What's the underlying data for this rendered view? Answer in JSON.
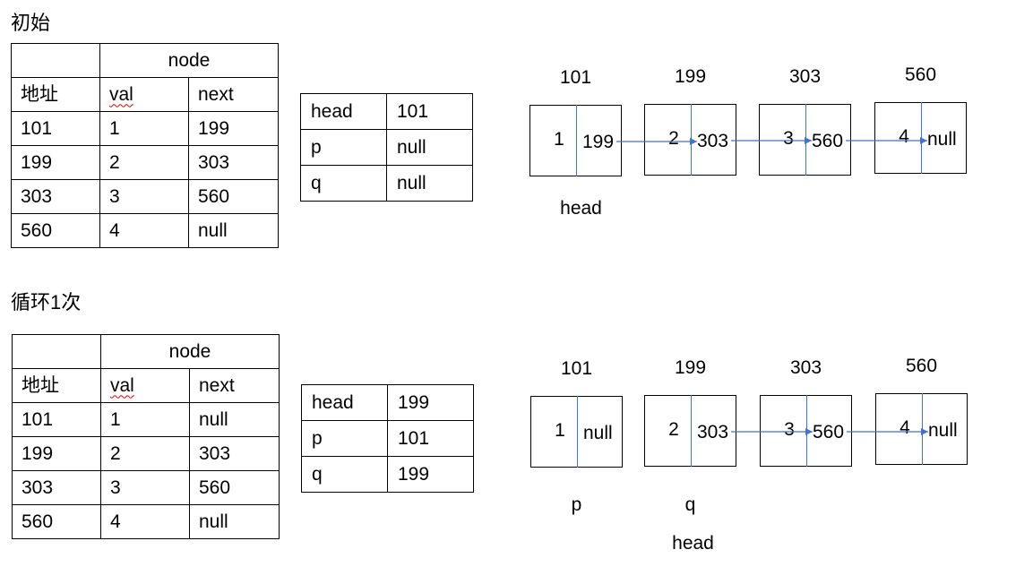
{
  "colors": {
    "link_arrow": "#4472C4",
    "node_divider": "#4472C4"
  },
  "sections": [
    {
      "title": "初始",
      "memory_table": {
        "group_header": "node",
        "headers": [
          "地址",
          "val",
          "next"
        ],
        "rows": [
          {
            "address": "101",
            "val": "1",
            "next": "199"
          },
          {
            "address": "199",
            "val": "2",
            "next": "303"
          },
          {
            "address": "303",
            "val": "3",
            "next": "560"
          },
          {
            "address": "560",
            "val": "4",
            "next": "null"
          }
        ]
      },
      "pointer_table": [
        {
          "name": "head",
          "value": "101"
        },
        {
          "name": "p",
          "value": "null"
        },
        {
          "name": "q",
          "value": "null"
        }
      ],
      "linked_list": {
        "nodes": [
          {
            "address": "101",
            "val": "1",
            "next": "199",
            "labels_below": [
              "head"
            ]
          },
          {
            "address": "199",
            "val": "2",
            "next": "303"
          },
          {
            "address": "303",
            "val": "3",
            "next": "560"
          },
          {
            "address": "560",
            "val": "4",
            "next": "null"
          }
        ]
      }
    },
    {
      "title": "循环1次",
      "memory_table": {
        "group_header": "node",
        "headers": [
          "地址",
          "val",
          "next"
        ],
        "rows": [
          {
            "address": "101",
            "val": "1",
            "next": "null"
          },
          {
            "address": "199",
            "val": "2",
            "next": "303"
          },
          {
            "address": "303",
            "val": "3",
            "next": "560"
          },
          {
            "address": "560",
            "val": "4",
            "next": "null"
          }
        ]
      },
      "pointer_table": [
        {
          "name": "head",
          "value": "199"
        },
        {
          "name": "p",
          "value": "101"
        },
        {
          "name": "q",
          "value": "199"
        }
      ],
      "linked_list": {
        "nodes": [
          {
            "address": "101",
            "val": "1",
            "next": "null",
            "labels_below": [
              "p"
            ]
          },
          {
            "address": "199",
            "val": "2",
            "next": "303",
            "labels_below": [
              "q",
              "head"
            ]
          },
          {
            "address": "303",
            "val": "3",
            "next": "560"
          },
          {
            "address": "560",
            "val": "4",
            "next": "null"
          }
        ]
      }
    }
  ]
}
